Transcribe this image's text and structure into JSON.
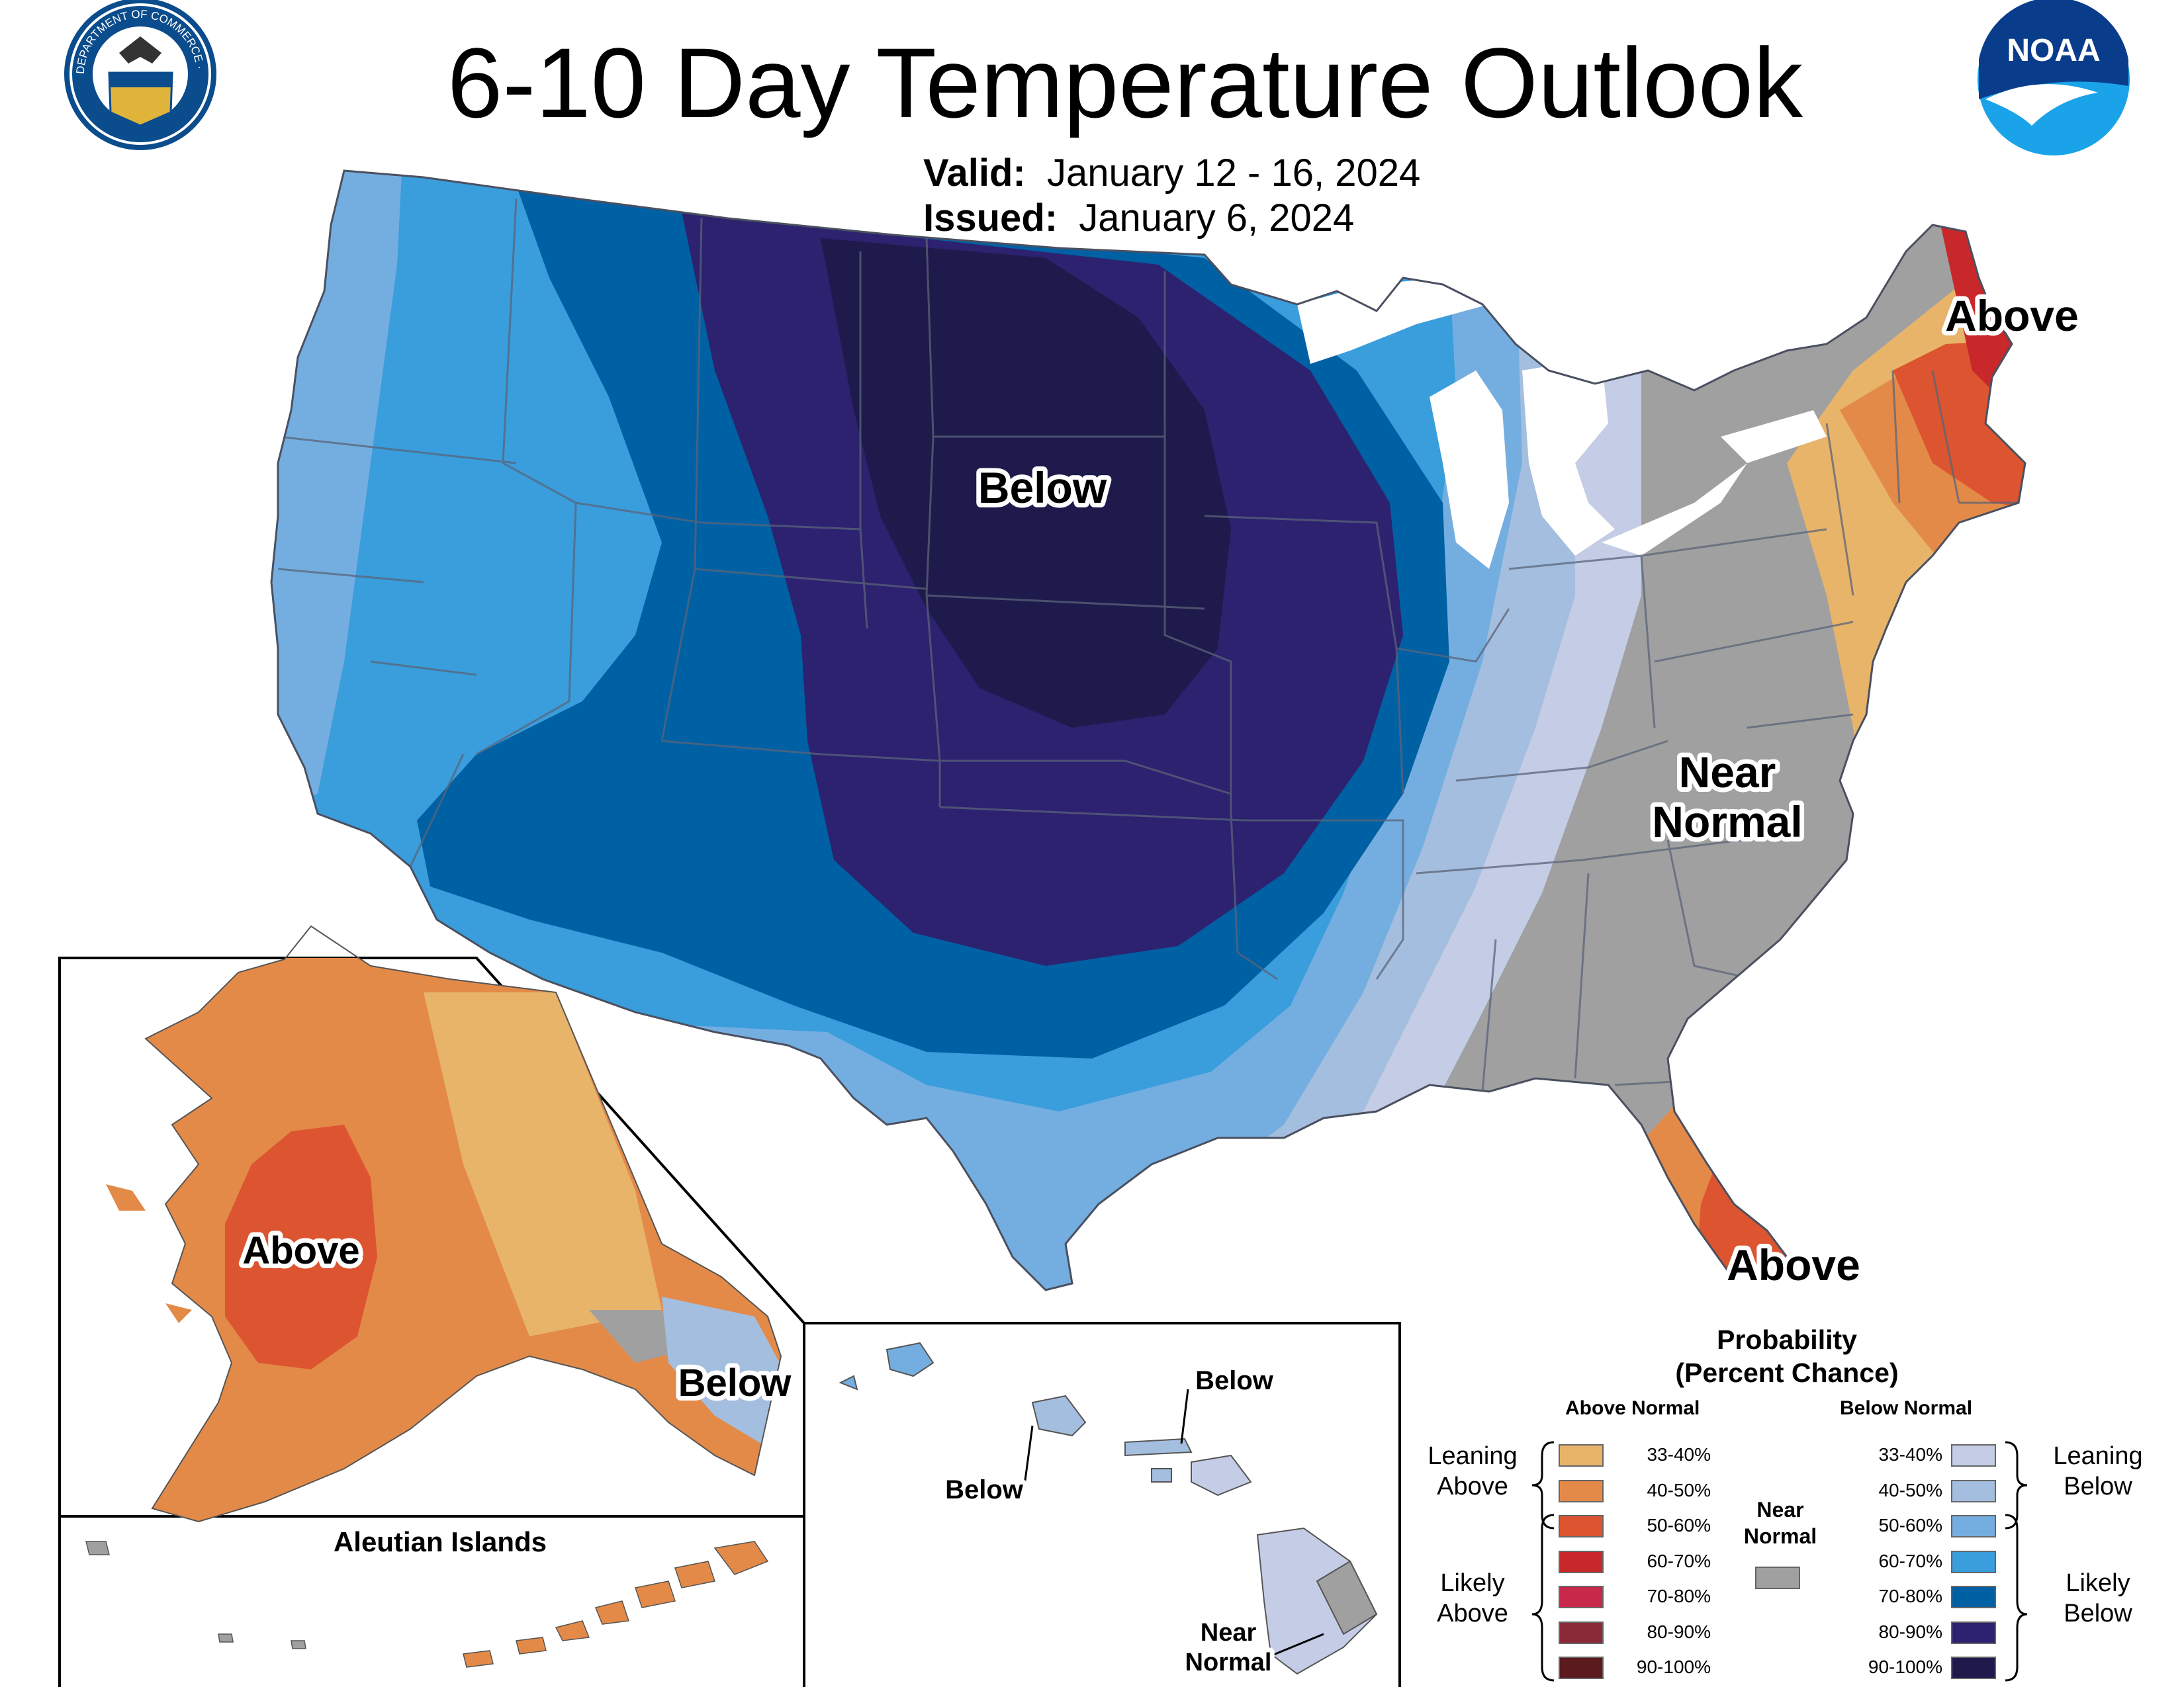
{
  "header": {
    "title": "6-10 Day Temperature Outlook",
    "valid_label": "Valid:",
    "valid_value": "January 12 - 16, 2024",
    "issued_label": "Issued:",
    "issued_value": "January 6, 2024"
  },
  "logos": {
    "commerce_ring_text": "DEPARTMENT OF COMMERCE · UNITED STATES OF AMERICA",
    "noaa": "NOAA"
  },
  "map_labels": {
    "conus_below": "Below",
    "northeast_above": "Above",
    "southeast_near_line1": "Near",
    "southeast_near_line2": "Normal",
    "florida_above": "Above",
    "alaska_above": "Above",
    "alaska_below": "Below",
    "aleutian_title": "Aleutian Islands",
    "hawaii_below_1": "Below",
    "hawaii_below_2": "Below",
    "hawaii_near_line1": "Near",
    "hawaii_near_line2": "Normal"
  },
  "legend": {
    "title_line1": "Probability",
    "title_line2": "(Percent Chance)",
    "above_header": "Above Normal",
    "below_header": "Below Normal",
    "near_line1": "Near",
    "near_line2": "Normal",
    "leaning_above_1": "Leaning",
    "leaning_above_2": "Above",
    "likely_above_1": "Likely",
    "likely_above_2": "Above",
    "leaning_below_1": "Leaning",
    "leaning_below_2": "Below",
    "likely_below_1": "Likely",
    "likely_below_2": "Below",
    "above": [
      {
        "range": "33-40%",
        "color": "#e8b46a"
      },
      {
        "range": "40-50%",
        "color": "#e48a48"
      },
      {
        "range": "50-60%",
        "color": "#dc5530"
      },
      {
        "range": "60-70%",
        "color": "#c8282a"
      },
      {
        "range": "70-80%",
        "color": "#c8284a"
      },
      {
        "range": "80-90%",
        "color": "#8a2a38"
      },
      {
        "range": "90-100%",
        "color": "#5a1a1e"
      }
    ],
    "below": [
      {
        "range": "33-40%",
        "color": "#c4cce6"
      },
      {
        "range": "40-50%",
        "color": "#a4bedf"
      },
      {
        "range": "50-60%",
        "color": "#74aee0"
      },
      {
        "range": "60-70%",
        "color": "#3a9ddc"
      },
      {
        "range": "70-80%",
        "color": "#0060a4"
      },
      {
        "range": "80-90%",
        "color": "#2c2270"
      },
      {
        "range": "90-100%",
        "color": "#1e1a4c"
      }
    ],
    "near_color": "#a0a0a0"
  }
}
